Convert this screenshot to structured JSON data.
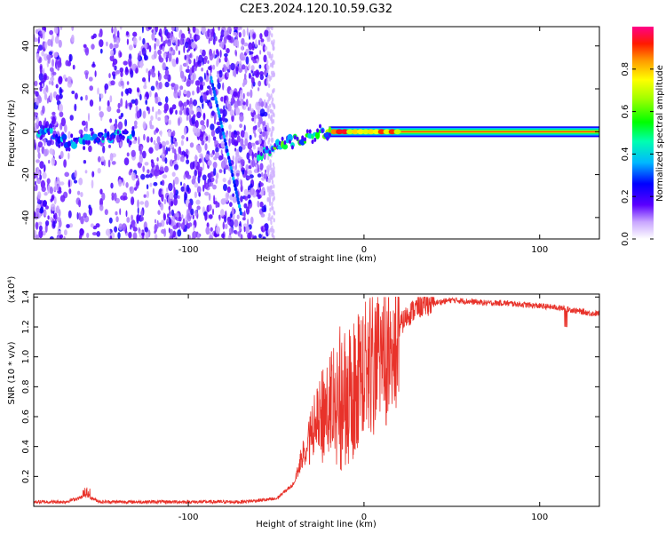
{
  "figure_title": "C2E3.2024.120.10.59.G32",
  "chart_data": [
    {
      "type": "heatmap",
      "xlabel": "Height of straight line (km)",
      "ylabel": "Frequency (Hz)",
      "xlim": [
        -188,
        134
      ],
      "ylim": [
        -50,
        49
      ],
      "x_ticks": [
        -100,
        0,
        100
      ],
      "x_tick_labels": [
        "-100",
        "0",
        "100"
      ],
      "y_ticks": [
        -40,
        -20,
        0,
        20,
        40
      ],
      "y_tick_labels": [
        "-40",
        "-20",
        "0",
        "20",
        "40"
      ],
      "colorbar": {
        "label": "Normalized spectral amplitude",
        "range": [
          0,
          1
        ],
        "ticks": [
          0.0,
          0.2,
          0.4,
          0.6,
          0.8
        ],
        "tick_labels": [
          "0.0",
          "0.2",
          "0.4",
          "0.6",
          "0.8"
        ]
      },
      "features": {
        "noise_region_x": [
          -188,
          -55
        ],
        "ridge_points": [
          [
            -185,
            0
          ],
          [
            -178,
            -1
          ],
          [
            -172,
            -4
          ],
          [
            -165,
            -6
          ],
          [
            -158,
            -2
          ],
          [
            -150,
            -3
          ],
          [
            -140,
            -2
          ],
          [
            -130,
            -2
          ],
          [
            -60,
            -11
          ],
          [
            -52,
            -8
          ],
          [
            -45,
            -5
          ],
          [
            -35,
            -3
          ],
          [
            -25,
            -1
          ],
          [
            -18,
            0
          ],
          [
            -10,
            0
          ],
          [
            0,
            0
          ],
          [
            20,
            0
          ],
          [
            60,
            0
          ],
          [
            100,
            0
          ],
          [
            134,
            0
          ]
        ],
        "diagonal_trace": [
          [
            -87,
            25
          ],
          [
            -70,
            -38
          ]
        ]
      },
      "grid": false
    },
    {
      "type": "line",
      "xlabel": "Height of straight line (km)",
      "ylabel": "SNR (10 * v/v)",
      "y_multiplier_label": "(x10⁴)",
      "xlim": [
        -188,
        134
      ],
      "ylim": [
        0,
        1.42
      ],
      "x_ticks": [
        -100,
        0,
        100
      ],
      "x_tick_labels": [
        "-100",
        "0",
        "100"
      ],
      "y_ticks": [
        0.2,
        0.4,
        0.6,
        0.8,
        1.0,
        1.2,
        1.4
      ],
      "y_tick_labels": [
        "0.2",
        "0.4",
        "0.6",
        "0.8",
        "1.0",
        "1.2",
        "1.4"
      ],
      "series": [
        {
          "color": "#e8322a",
          "x": [
            -188,
            -170,
            -158,
            -150,
            -130,
            -100,
            -70,
            -50,
            -40,
            -35,
            -30,
            -25,
            -20,
            -15,
            -10,
            -5,
            0,
            5,
            10,
            15,
            20,
            25,
            30,
            35,
            40,
            45,
            50,
            60,
            70,
            80,
            90,
            100,
            110,
            115,
            120,
            125,
            130,
            134
          ],
          "y": [
            0.03,
            0.03,
            0.07,
            0.03,
            0.03,
            0.03,
            0.03,
            0.05,
            0.15,
            0.35,
            0.5,
            0.6,
            0.7,
            0.75,
            0.8,
            0.85,
            0.95,
            1.0,
            1.05,
            1.1,
            1.2,
            1.28,
            1.33,
            1.35,
            1.36,
            1.37,
            1.38,
            1.37,
            1.36,
            1.36,
            1.35,
            1.34,
            1.33,
            1.32,
            1.31,
            1.3,
            1.29,
            1.29
          ]
        }
      ],
      "grid": false
    }
  ]
}
